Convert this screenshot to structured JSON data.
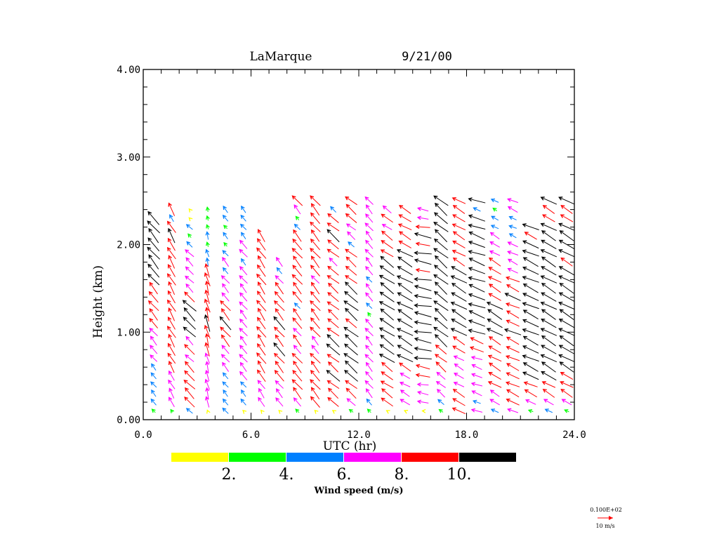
{
  "chart_data": {
    "type": "wind-profile-vector",
    "title_station": "LaMarque",
    "title_date": "9/21/00",
    "xlabel": "UTC (hr)",
    "ylabel": "Height (km)",
    "xlim": [
      0,
      24
    ],
    "ylim": [
      0,
      4
    ],
    "xticks": [
      "0.0",
      "6.0",
      "12.0",
      "18.0",
      "24.0"
    ],
    "xtick_values": [
      0,
      6,
      12,
      18,
      24
    ],
    "x_minor_step": 1,
    "yticks": [
      "0.00",
      "1.00",
      "2.00",
      "3.00",
      "4.00"
    ],
    "ytick_values": [
      0,
      1,
      2,
      3,
      4
    ],
    "y_minor_step": 0.2,
    "grid": false,
    "colorbar": {
      "label": "Wind speed (m/s)",
      "bins": [
        {
          "min": 0,
          "max": 2,
          "color": "#ffff00"
        },
        {
          "min": 2,
          "max": 4,
          "color": "#00ff00"
        },
        {
          "min": 4,
          "max": 6,
          "color": "#0080ff"
        },
        {
          "min": 6,
          "max": 8,
          "color": "#ff00ff"
        },
        {
          "min": 8,
          "max": 10,
          "color": "#ff0000"
        },
        {
          "min": 10,
          "max": 12,
          "color": "#000000"
        }
      ],
      "tick_labels": [
        "2.",
        "4.",
        "6.",
        "8.",
        "10."
      ]
    },
    "reference_vector": {
      "scale_label": "0.100E+02",
      "label": "10 m/s",
      "speed": 10,
      "color": "#ff0000"
    },
    "profile_times_hr": [
      0.35,
      1.35,
      2.35,
      3.35,
      4.35,
      5.35,
      6.35,
      7.35,
      8.35,
      9.35,
      10.35,
      11.35,
      12.35,
      13.35,
      14.35,
      15.35,
      16.35,
      17.35,
      18.35,
      19.35,
      20.35,
      21.35,
      22.35,
      23.35
    ],
    "gate_spacing_km": 0.1,
    "first_gate_km": 0.1,
    "profiles": [
      {
        "time": 0.35,
        "top_km": 2.3,
        "speeds": [
          3,
          5,
          5,
          5,
          5,
          5,
          6,
          7,
          7,
          7,
          8,
          9,
          9,
          9,
          9,
          10,
          11,
          11,
          11,
          11,
          11,
          11,
          11
        ],
        "dir_from": 140
      },
      {
        "time": 1.35,
        "top_km": 2.4,
        "speeds": [
          2,
          7,
          7,
          7,
          7,
          8,
          8,
          9,
          9,
          9,
          9,
          9,
          9,
          9,
          9,
          9,
          9,
          9,
          9,
          9,
          10,
          9,
          5,
          9
        ],
        "dir_from": 150
      },
      {
        "time": 2.35,
        "top_km": 2.4,
        "speeds": [
          5,
          9,
          9,
          9,
          9,
          9,
          7,
          9,
          7,
          10,
          11,
          11,
          11,
          9,
          7,
          7,
          7,
          7,
          7,
          5,
          3,
          5,
          1,
          1
        ],
        "dir_from": 135
      },
      {
        "time": 3.35,
        "top_km": 2.4,
        "speeds": [
          1,
          7,
          7,
          7,
          7,
          7,
          7,
          9,
          9,
          9,
          11,
          9,
          9,
          9,
          9,
          9,
          9,
          5,
          5,
          3,
          5,
          3,
          3,
          3
        ],
        "dir_from": 165
      },
      {
        "time": 4.35,
        "top_km": 2.4,
        "speeds": [
          5,
          5,
          5,
          5,
          5,
          7,
          7,
          7,
          9,
          9,
          11,
          9,
          9,
          7,
          7,
          7,
          5,
          7,
          5,
          3,
          5,
          3,
          5,
          5
        ],
        "dir_from": 140
      },
      {
        "time": 5.35,
        "top_km": 2.4,
        "speeds": [
          1,
          5,
          5,
          5,
          7,
          7,
          7,
          7,
          7,
          7,
          7,
          7,
          7,
          7,
          7,
          7,
          7,
          5,
          7,
          7,
          5,
          5,
          5,
          5
        ],
        "dir_from": 140
      },
      {
        "time": 6.35,
        "top_km": 2.1,
        "speeds": [
          1,
          7,
          7,
          7,
          9,
          9,
          9,
          9,
          9,
          9,
          9,
          9,
          9,
          9,
          9,
          9,
          9,
          9,
          9,
          9,
          9
        ],
        "dir_from": 145
      },
      {
        "time": 7.35,
        "top_km": 1.8,
        "speeds": [
          1,
          7,
          7,
          7,
          9,
          9,
          9,
          11,
          9,
          9,
          11,
          9,
          9,
          9,
          9,
          7,
          5,
          7
        ],
        "dir_from": 140
      },
      {
        "time": 8.35,
        "top_km": 2.5,
        "speeds": [
          3,
          7,
          9,
          9,
          9,
          9,
          9,
          7,
          9,
          7,
          9,
          9,
          5,
          9,
          9,
          9,
          9,
          9,
          9,
          9,
          9,
          5,
          3,
          7,
          9
        ],
        "dir_from": 140
      },
      {
        "time": 9.35,
        "top_km": 2.5,
        "speeds": [
          1,
          9,
          9,
          9,
          9,
          9,
          9,
          7,
          7,
          9,
          9,
          9,
          9,
          9,
          9,
          7,
          9,
          9,
          9,
          9,
          9,
          9,
          9,
          9,
          9
        ],
        "dir_from": 140
      },
      {
        "time": 10.35,
        "top_km": 2.4,
        "speeds": [
          1,
          9,
          9,
          9,
          11,
          9,
          9,
          11,
          11,
          9,
          9,
          9,
          9,
          9,
          9,
          9,
          9,
          7,
          9,
          9,
          11,
          9,
          9,
          5
        ],
        "dir_from": 130
      },
      {
        "time": 11.35,
        "top_km": 2.5,
        "speeds": [
          3,
          7,
          9,
          9,
          11,
          11,
          11,
          11,
          11,
          11,
          9,
          11,
          11,
          11,
          11,
          9,
          9,
          9,
          9,
          5,
          7,
          7,
          9,
          9,
          9
        ],
        "dir_from": 130
      },
      {
        "time": 12.35,
        "top_km": 2.5,
        "speeds": [
          3,
          5,
          7,
          7,
          7,
          7,
          7,
          7,
          7,
          7,
          7,
          3,
          5,
          7,
          7,
          5,
          7,
          7,
          7,
          7,
          7,
          7,
          7,
          7,
          7
        ],
        "dir_from": 140
      },
      {
        "time": 13.35,
        "top_km": 2.4,
        "speeds": [
          1,
          9,
          9,
          9,
          9,
          9,
          11,
          11,
          11,
          11,
          11,
          11,
          11,
          11,
          11,
          11,
          11,
          11,
          9,
          9,
          9,
          7,
          9,
          7
        ],
        "dir_from": 125
      },
      {
        "time": 14.35,
        "top_km": 2.4,
        "speeds": [
          1,
          7,
          7,
          7,
          7,
          9,
          11,
          11,
          11,
          11,
          11,
          11,
          11,
          11,
          11,
          11,
          11,
          11,
          11,
          9,
          9,
          9,
          9,
          9
        ],
        "dir_from": 120
      },
      {
        "time": 15.35,
        "top_km": 2.4,
        "speeds": [
          1,
          7,
          7,
          7,
          9,
          9,
          11,
          11,
          11,
          11,
          11,
          11,
          11,
          11,
          11,
          11,
          9,
          11,
          11,
          9,
          11,
          9,
          7,
          7
        ],
        "dir_from": 100
      },
      {
        "time": 16.35,
        "top_km": 2.5,
        "speeds": [
          3,
          5,
          7,
          7,
          7,
          9,
          9,
          9,
          11,
          11,
          11,
          11,
          11,
          11,
          11,
          11,
          11,
          11,
          11,
          11,
          11,
          11,
          11,
          11,
          11
        ],
        "dir_from": 130
      },
      {
        "time": 17.35,
        "top_km": 2.5,
        "speeds": [
          9,
          9,
          9,
          7,
          7,
          7,
          7,
          9,
          9,
          11,
          11,
          11,
          11,
          11,
          11,
          11,
          11,
          9,
          9,
          9,
          9,
          9,
          9,
          9,
          9
        ],
        "dir_from": 120
      },
      {
        "time": 18.35,
        "top_km": 2.5,
        "speeds": [
          7,
          5,
          7,
          7,
          7,
          7,
          7,
          9,
          9,
          11,
          11,
          11,
          11,
          11,
          11,
          11,
          11,
          11,
          11,
          11,
          11,
          11,
          11,
          5,
          11
        ],
        "dir_from": 110
      },
      {
        "time": 19.35,
        "top_km": 2.5,
        "speeds": [
          5,
          7,
          7,
          9,
          9,
          9,
          9,
          9,
          9,
          11,
          11,
          11,
          11,
          9,
          9,
          9,
          9,
          9,
          7,
          7,
          7,
          5,
          5,
          3,
          5
        ],
        "dir_from": 120
      },
      {
        "time": 20.35,
        "top_km": 2.5,
        "speeds": [
          7,
          9,
          9,
          9,
          9,
          9,
          9,
          9,
          9,
          11,
          9,
          9,
          9,
          11,
          9,
          9,
          7,
          7,
          7,
          7,
          5,
          5,
          5,
          7,
          7
        ],
        "dir_from": 115
      },
      {
        "time": 21.35,
        "top_km": 2.2,
        "speeds": [
          3,
          7,
          9,
          9,
          11,
          11,
          11,
          11,
          11,
          11,
          11,
          11,
          11,
          11,
          11,
          11,
          11,
          11,
          11,
          11,
          9,
          11
        ],
        "dir_from": 115
      },
      {
        "time": 22.35,
        "top_km": 2.5,
        "speeds": [
          5,
          7,
          9,
          9,
          11,
          11,
          11,
          11,
          11,
          11,
          11,
          11,
          11,
          11,
          11,
          11,
          11,
          11,
          11,
          11,
          11,
          11,
          9,
          9,
          11
        ],
        "dir_from": 120
      },
      {
        "time": 23.35,
        "top_km": 2.5,
        "speeds": [
          3,
          7,
          9,
          9,
          9,
          11,
          11,
          11,
          11,
          11,
          11,
          11,
          11,
          11,
          11,
          11,
          11,
          9,
          11,
          11,
          11,
          11,
          9,
          9,
          11
        ],
        "dir_from": 120
      }
    ]
  }
}
